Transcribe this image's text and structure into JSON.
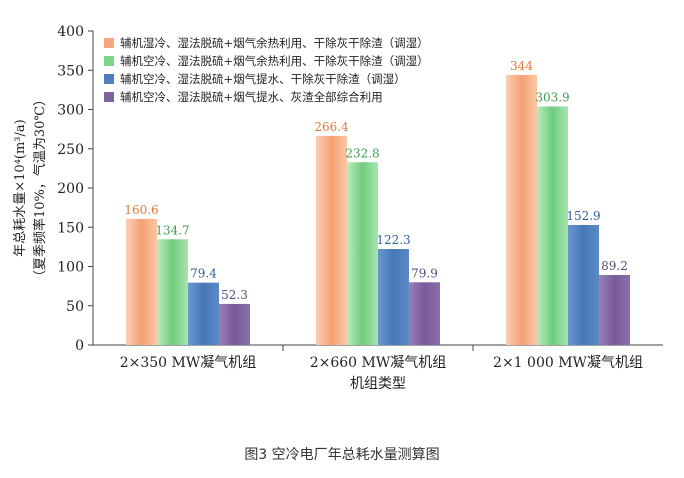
{
  "caption": "图3 空冷电厂年总耗水量测算图",
  "chart_data": {
    "type": "bar",
    "title": "",
    "xlabel": "机组类型",
    "ylabel_line1": "年总耗水量×10⁴(m³/a)",
    "ylabel_line2": "（夏季频率10%，气温为30℃）",
    "ylim": [
      0,
      400
    ],
    "yticks": [
      "0",
      "50",
      "100",
      "150",
      "200",
      "250",
      "300",
      "350",
      "400"
    ],
    "grid": false,
    "legend_position": "top-left",
    "categories": [
      "2×350 MW凝气机组",
      "2×660 MW凝气机组",
      "2×1 000 MW凝气机组"
    ],
    "series": [
      {
        "name": "辅机湿冷、湿法脱硫+烟气余热利用、干除灰干除渣（调湿）",
        "values": [
          160.6,
          266.4,
          344
        ],
        "labels": [
          "160.6",
          "266.4",
          "344"
        ],
        "color": "#f7a77d",
        "label_color": "#e07a3a"
      },
      {
        "name": "辅机空冷、湿法脱硫+烟气余热利用、干除灰干除渣（调湿）",
        "values": [
          134.7,
          232.8,
          303.9
        ],
        "labels": [
          "134.7",
          "232.8",
          "303.9"
        ],
        "color": "#7fd48a",
        "label_color": "#3f9e4f"
      },
      {
        "name": "辅机空冷、湿法脱硫+烟气提水、干除灰干除渣（调湿）",
        "values": [
          79.4,
          122.3,
          152.9
        ],
        "labels": [
          "79.4",
          "122.3",
          "152.9"
        ],
        "color": "#4f7fbf",
        "label_color": "#2f5f9f"
      },
      {
        "name": "辅机空冷、湿法脱硫+烟气提水、灰渣全部综合利用",
        "values": [
          52.3,
          79.9,
          89.2
        ],
        "labels": [
          "52.3",
          "79.9",
          "89.2"
        ],
        "color": "#8064a2",
        "label_color": "#5b4a7a"
      }
    ]
  }
}
